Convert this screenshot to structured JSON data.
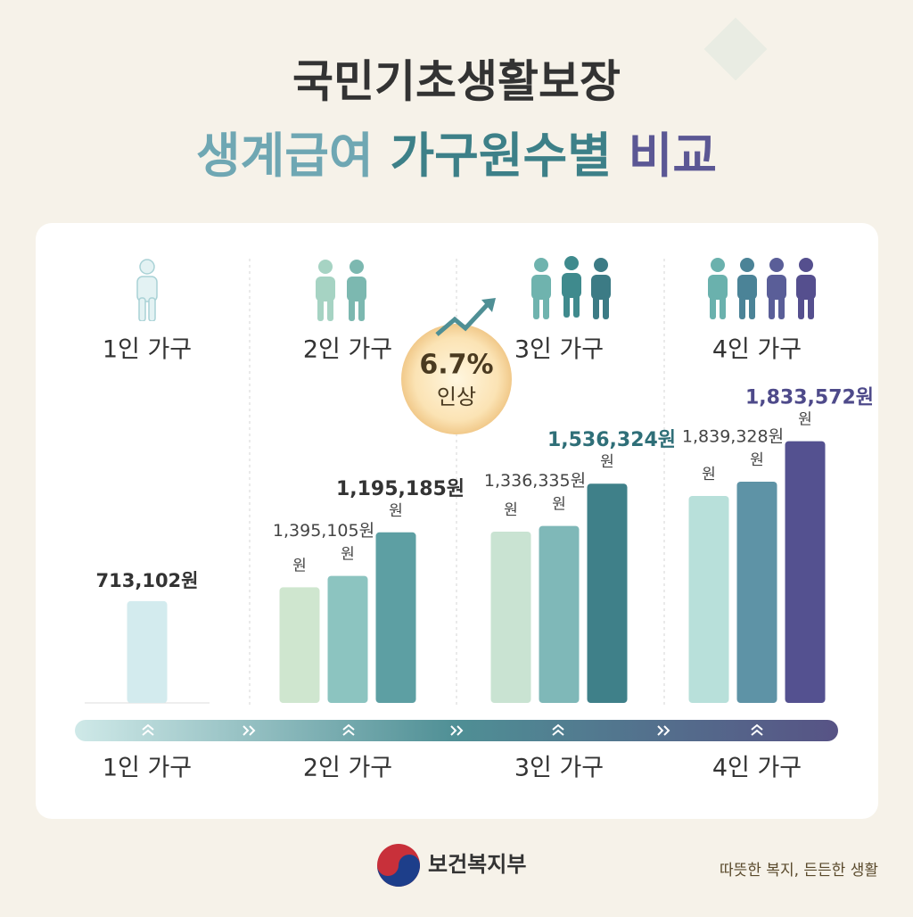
{
  "chart_data": {
    "type": "bar",
    "title": "국민기초생활보장",
    "subtitle_parts": [
      "생계급여",
      "가구원수별",
      "비교"
    ],
    "subtitle_colors": [
      "#6fa7b3",
      "#3d8088",
      "#5b5794"
    ],
    "ylim": [
      0,
      2000000
    ],
    "groups": [
      {
        "label": "1인 가구",
        "values": [
          713102
        ],
        "value_labels": [
          "713,102원"
        ],
        "colors": [
          "#d3ebee"
        ]
      },
      {
        "label": "2인 가구",
        "values": [
          810000,
          890000,
          1195185
        ],
        "value_labels": [
          null,
          null,
          "1,195,185원"
        ],
        "units": [
          "원",
          "원",
          "원"
        ],
        "note": "1,395,105원",
        "colors": [
          "#cfe6cf",
          "#8cc4c0",
          "#5d9fa3"
        ]
      },
      {
        "label": "3인 가구",
        "values": [
          1200000,
          1240000,
          1536324
        ],
        "value_labels": [
          null,
          null,
          "1,536,324원"
        ],
        "units": [
          "원",
          "원",
          "원"
        ],
        "note": "1,336,335원",
        "colors": [
          "#c9e3d2",
          "#7fb8b8",
          "#3f8089"
        ],
        "label_color": "#2f6f78"
      },
      {
        "label": "4인 가구",
        "values": [
          1450000,
          1550000,
          1833572
        ],
        "value_labels": [
          null,
          null,
          "1,833,572원"
        ],
        "units": [
          "원",
          "원",
          "원"
        ],
        "note": "1,839,328원",
        "colors": [
          "#b8e0da",
          "#5e93a6",
          "#545190"
        ],
        "label_color": "#4e4a8a"
      }
    ],
    "axis_labels": [
      "1인 가구",
      "2인 가구",
      "3인 가구",
      "4인 가구"
    ],
    "badge": {
      "text": "6.7%",
      "caption": "인상"
    },
    "footer": {
      "org": "보건복지부",
      "slogan": "따뜻한 복지, 든든한 생활"
    }
  }
}
